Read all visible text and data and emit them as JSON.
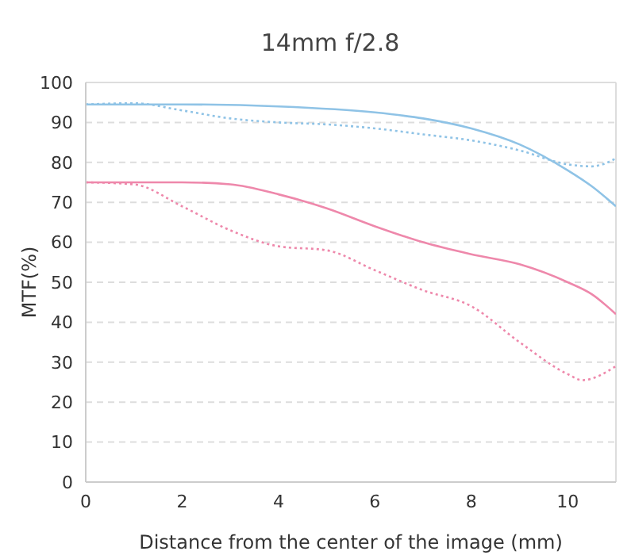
{
  "chart_data": {
    "type": "line",
    "title": "14mm f/2.8",
    "xlabel": "Distance from the center of the image (mm)",
    "ylabel": "MTF(%)",
    "xlim": [
      0,
      11
    ],
    "xticks": [
      0,
      2,
      4,
      6,
      8,
      10
    ],
    "ylim": [
      0,
      100
    ],
    "yticks": [
      0,
      10,
      20,
      30,
      40,
      50,
      60,
      70,
      80,
      90,
      100
    ],
    "grid": "y",
    "marker": "none",
    "series": [
      {
        "color": "#8fc3e6",
        "line_style": "solid",
        "x": [
          0,
          2,
          4,
          6,
          7,
          8,
          9,
          10,
          10.5,
          11
        ],
        "values": [
          94.5,
          94.5,
          94,
          92.5,
          91,
          88.5,
          84.5,
          78,
          74,
          69
        ]
      },
      {
        "color": "#8fc3e6",
        "line_style": "dotted",
        "x": [
          0,
          1,
          2,
          3,
          4,
          5,
          6,
          7,
          8,
          9,
          10,
          10.5,
          11
        ],
        "values": [
          94.5,
          94.8,
          93,
          91,
          90,
          89.5,
          88.5,
          87,
          85.5,
          83,
          79.5,
          79,
          81
        ]
      },
      {
        "color": "#ee88ab",
        "line_style": "solid",
        "x": [
          0,
          2,
          3,
          4,
          5,
          6,
          7,
          8,
          9,
          10,
          10.5,
          11
        ],
        "values": [
          75,
          75,
          74.5,
          72,
          68.5,
          64,
          60,
          57,
          54.5,
          50,
          47,
          42
        ]
      },
      {
        "color": "#ee88ab",
        "line_style": "dotted",
        "x": [
          0,
          1,
          2,
          3,
          4,
          5,
          6,
          7,
          8,
          9,
          10,
          10.3,
          11
        ],
        "values": [
          75,
          74.5,
          69,
          63,
          59,
          58,
          53,
          48,
          44,
          35,
          27,
          25.5,
          29
        ]
      }
    ]
  }
}
